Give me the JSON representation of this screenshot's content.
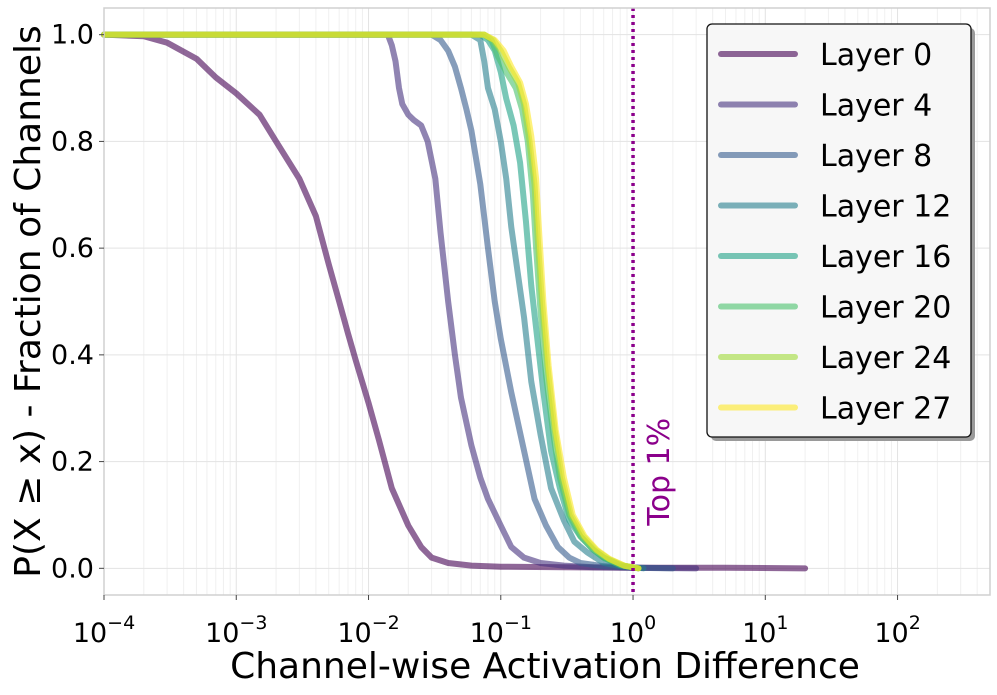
{
  "chart_data": {
    "type": "line",
    "title": "",
    "xlabel": "Channel-wise Activation Difference",
    "ylabel": "P(X ≥ x) - Fraction of Channels",
    "xscale": "log",
    "xlim": [
      0.0001,
      500
    ],
    "ylim": [
      -0.05,
      1.05
    ],
    "x_ticks": [
      {
        "value": 0.0001,
        "base": "10",
        "exp": "−4"
      },
      {
        "value": 0.001,
        "base": "10",
        "exp": "−3"
      },
      {
        "value": 0.01,
        "base": "10",
        "exp": "−2"
      },
      {
        "value": 0.1,
        "base": "10",
        "exp": "−1"
      },
      {
        "value": 1,
        "base": "10",
        "exp": "0"
      },
      {
        "value": 10,
        "base": "10",
        "exp": "1"
      },
      {
        "value": 100,
        "base": "10",
        "exp": "2"
      }
    ],
    "y_ticks": [
      {
        "value": 0.0,
        "label": "0.0"
      },
      {
        "value": 0.2,
        "label": "0.2"
      },
      {
        "value": 0.4,
        "label": "0.4"
      },
      {
        "value": 0.6,
        "label": "0.6"
      },
      {
        "value": 0.8,
        "label": "0.8"
      },
      {
        "value": 1.0,
        "label": "1.0"
      }
    ],
    "grid": true,
    "legend_position": "top-right",
    "annotation": {
      "text": "Top 1%",
      "x": 1.0,
      "color": "#8b008b"
    },
    "series": [
      {
        "name": "Layer 0",
        "color": "#440154",
        "points": [
          [
            0.0001,
            1.0
          ],
          [
            0.0002,
            0.997
          ],
          [
            0.0003,
            0.985
          ],
          [
            0.0005,
            0.955
          ],
          [
            0.0007,
            0.92
          ],
          [
            0.001,
            0.89
          ],
          [
            0.0015,
            0.85
          ],
          [
            0.002,
            0.8
          ],
          [
            0.003,
            0.73
          ],
          [
            0.004,
            0.66
          ],
          [
            0.005,
            0.57
          ],
          [
            0.006,
            0.5
          ],
          [
            0.007,
            0.44
          ],
          [
            0.008,
            0.39
          ],
          [
            0.01,
            0.31
          ],
          [
            0.012,
            0.24
          ],
          [
            0.015,
            0.15
          ],
          [
            0.02,
            0.08
          ],
          [
            0.025,
            0.04
          ],
          [
            0.03,
            0.02
          ],
          [
            0.04,
            0.01
          ],
          [
            0.06,
            0.005
          ],
          [
            0.1,
            0.003
          ],
          [
            0.3,
            0.002
          ],
          [
            1,
            0.001
          ],
          [
            5,
            0.001
          ],
          [
            20,
            0.0
          ]
        ]
      },
      {
        "name": "Layer 4",
        "color": "#46327e",
        "points": [
          [
            0.0001,
            1.0
          ],
          [
            0.01,
            1.0
          ],
          [
            0.014,
            1.0
          ],
          [
            0.015,
            0.98
          ],
          [
            0.016,
            0.95
          ],
          [
            0.017,
            0.9
          ],
          [
            0.018,
            0.87
          ],
          [
            0.02,
            0.85
          ],
          [
            0.022,
            0.84
          ],
          [
            0.025,
            0.83
          ],
          [
            0.028,
            0.8
          ],
          [
            0.032,
            0.73
          ],
          [
            0.035,
            0.63
          ],
          [
            0.04,
            0.5
          ],
          [
            0.045,
            0.4
          ],
          [
            0.05,
            0.32
          ],
          [
            0.06,
            0.23
          ],
          [
            0.07,
            0.17
          ],
          [
            0.08,
            0.13
          ],
          [
            0.1,
            0.08
          ],
          [
            0.12,
            0.04
          ],
          [
            0.15,
            0.02
          ],
          [
            0.2,
            0.01
          ],
          [
            0.3,
            0.005
          ],
          [
            0.5,
            0.002
          ],
          [
            1,
            0.001
          ],
          [
            3,
            0.0
          ]
        ]
      },
      {
        "name": "Layer 8",
        "color": "#365c8d",
        "points": [
          [
            0.0001,
            1.0
          ],
          [
            0.03,
            1.0
          ],
          [
            0.035,
            0.99
          ],
          [
            0.04,
            0.97
          ],
          [
            0.045,
            0.94
          ],
          [
            0.05,
            0.9
          ],
          [
            0.055,
            0.86
          ],
          [
            0.06,
            0.82
          ],
          [
            0.07,
            0.72
          ],
          [
            0.08,
            0.6
          ],
          [
            0.09,
            0.5
          ],
          [
            0.1,
            0.43
          ],
          [
            0.12,
            0.33
          ],
          [
            0.15,
            0.22
          ],
          [
            0.18,
            0.13
          ],
          [
            0.22,
            0.08
          ],
          [
            0.27,
            0.04
          ],
          [
            0.33,
            0.02
          ],
          [
            0.4,
            0.01
          ],
          [
            0.6,
            0.004
          ],
          [
            1,
            0.001
          ],
          [
            2,
            0.0
          ]
        ]
      },
      {
        "name": "Layer 12",
        "color": "#277f8e",
        "points": [
          [
            0.0001,
            1.0
          ],
          [
            0.06,
            1.0
          ],
          [
            0.07,
            0.99
          ],
          [
            0.075,
            0.95
          ],
          [
            0.08,
            0.9
          ],
          [
            0.09,
            0.86
          ],
          [
            0.1,
            0.8
          ],
          [
            0.11,
            0.73
          ],
          [
            0.12,
            0.64
          ],
          [
            0.135,
            0.55
          ],
          [
            0.15,
            0.47
          ],
          [
            0.17,
            0.35
          ],
          [
            0.2,
            0.25
          ],
          [
            0.24,
            0.15
          ],
          [
            0.3,
            0.09
          ],
          [
            0.36,
            0.05
          ],
          [
            0.45,
            0.03
          ],
          [
            0.6,
            0.01
          ],
          [
            0.8,
            0.004
          ],
          [
            1.2,
            0.0
          ]
        ]
      },
      {
        "name": "Layer 16",
        "color": "#1fa187",
        "points": [
          [
            0.0001,
            1.0
          ],
          [
            0.07,
            1.0
          ],
          [
            0.08,
            0.99
          ],
          [
            0.09,
            0.97
          ],
          [
            0.1,
            0.93
          ],
          [
            0.11,
            0.88
          ],
          [
            0.125,
            0.83
          ],
          [
            0.14,
            0.76
          ],
          [
            0.155,
            0.65
          ],
          [
            0.17,
            0.53
          ],
          [
            0.185,
            0.45
          ],
          [
            0.21,
            0.33
          ],
          [
            0.24,
            0.22
          ],
          [
            0.28,
            0.15
          ],
          [
            0.33,
            0.09
          ],
          [
            0.4,
            0.06
          ],
          [
            0.5,
            0.035
          ],
          [
            0.6,
            0.02
          ],
          [
            0.8,
            0.006
          ],
          [
            1.1,
            0.0
          ]
        ]
      },
      {
        "name": "Layer 20",
        "color": "#4ac16d",
        "points": [
          [
            0.0001,
            1.0
          ],
          [
            0.075,
            1.0
          ],
          [
            0.085,
            0.99
          ],
          [
            0.095,
            0.96
          ],
          [
            0.11,
            0.93
          ],
          [
            0.13,
            0.9
          ],
          [
            0.145,
            0.86
          ],
          [
            0.16,
            0.8
          ],
          [
            0.175,
            0.7
          ],
          [
            0.185,
            0.6
          ],
          [
            0.2,
            0.48
          ],
          [
            0.22,
            0.36
          ],
          [
            0.25,
            0.25
          ],
          [
            0.28,
            0.17
          ],
          [
            0.33,
            0.1
          ],
          [
            0.4,
            0.06
          ],
          [
            0.5,
            0.035
          ],
          [
            0.6,
            0.02
          ],
          [
            0.8,
            0.006
          ],
          [
            1.1,
            0.0
          ]
        ]
      },
      {
        "name": "Layer 24",
        "color": "#a0da39",
        "points": [
          [
            0.0001,
            1.0
          ],
          [
            0.075,
            1.0
          ],
          [
            0.088,
            0.99
          ],
          [
            0.1,
            0.97
          ],
          [
            0.115,
            0.94
          ],
          [
            0.135,
            0.91
          ],
          [
            0.15,
            0.87
          ],
          [
            0.165,
            0.8
          ],
          [
            0.18,
            0.72
          ],
          [
            0.19,
            0.62
          ],
          [
            0.205,
            0.5
          ],
          [
            0.225,
            0.38
          ],
          [
            0.255,
            0.26
          ],
          [
            0.29,
            0.17
          ],
          [
            0.34,
            0.1
          ],
          [
            0.42,
            0.06
          ],
          [
            0.52,
            0.035
          ],
          [
            0.65,
            0.018
          ],
          [
            0.85,
            0.005
          ],
          [
            1.1,
            0.0
          ]
        ]
      },
      {
        "name": "Layer 27",
        "color": "#fde725",
        "points": [
          [
            0.0001,
            1.0
          ],
          [
            0.075,
            1.0
          ],
          [
            0.09,
            0.99
          ],
          [
            0.105,
            0.97
          ],
          [
            0.12,
            0.94
          ],
          [
            0.14,
            0.91
          ],
          [
            0.155,
            0.87
          ],
          [
            0.17,
            0.81
          ],
          [
            0.185,
            0.73
          ],
          [
            0.195,
            0.63
          ],
          [
            0.21,
            0.5
          ],
          [
            0.23,
            0.38
          ],
          [
            0.26,
            0.26
          ],
          [
            0.3,
            0.17
          ],
          [
            0.35,
            0.1
          ],
          [
            0.43,
            0.06
          ],
          [
            0.53,
            0.035
          ],
          [
            0.66,
            0.018
          ],
          [
            0.86,
            0.005
          ],
          [
            1.1,
            0.0
          ]
        ]
      }
    ]
  }
}
